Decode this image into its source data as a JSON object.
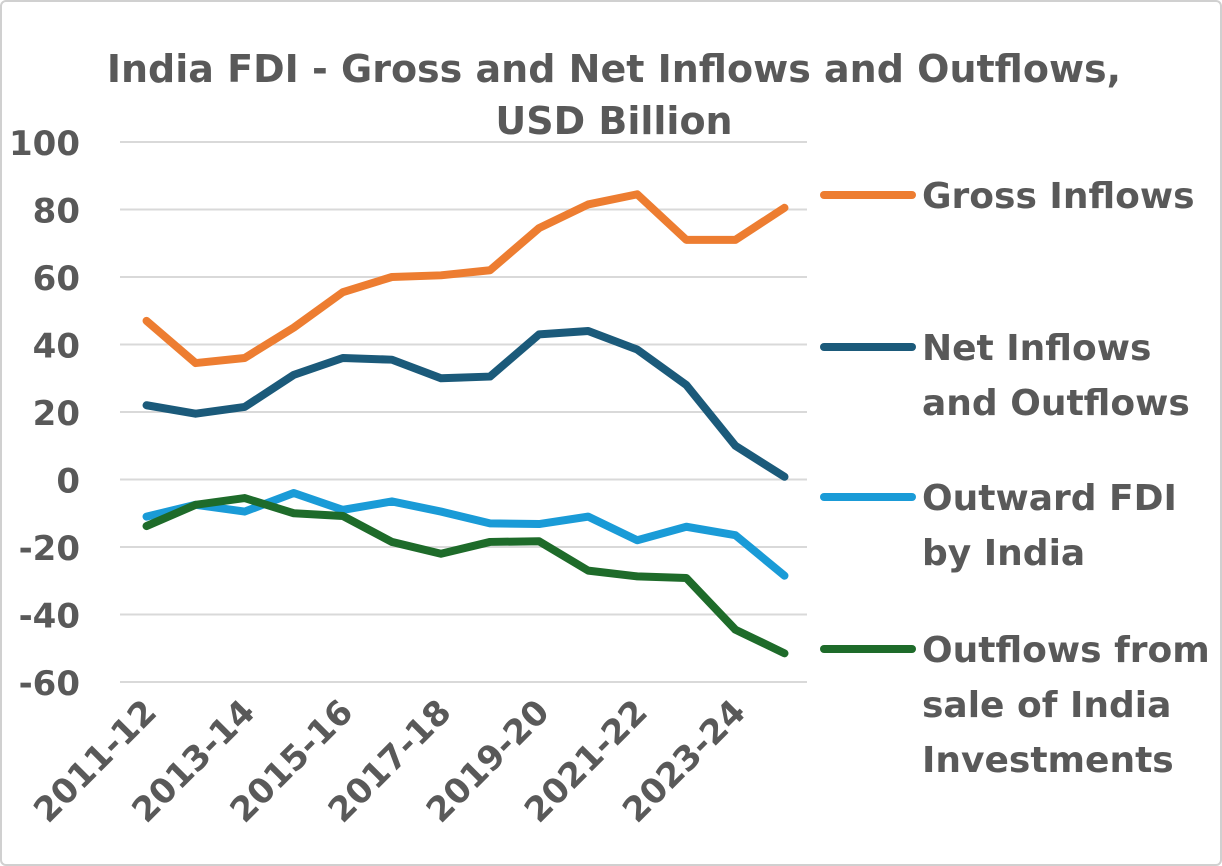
{
  "chart_data": {
    "type": "line",
    "title": "India FDI - Gross and Net Inflows and Outflows, USD Billion",
    "title_lines": [
      "India FDI - Gross and Net Inflows and Outflows,",
      "USD Billion"
    ],
    "xlabel": "",
    "ylabel": "",
    "ylim": [
      -60,
      100
    ],
    "yticks": [
      100,
      80,
      60,
      40,
      20,
      0,
      -20,
      -40,
      -60
    ],
    "ytick_labels": [
      "100",
      "80",
      "60",
      "40",
      "20",
      "0",
      "-20",
      "-40",
      "-60"
    ],
    "grid": true,
    "legend_placement": "right",
    "categories": [
      "2011-12",
      "2012-13",
      "2013-14",
      "2014-15",
      "2015-16",
      "2016-17",
      "2017-18",
      "2018-19",
      "2019-20",
      "2020-21",
      "2021-22",
      "2022-23",
      "2023-24",
      "2024-25"
    ],
    "xtick_labels": [
      "2011-12",
      "2013-14",
      "2015-16",
      "2017-18",
      "2019-20",
      "2021-22",
      "2023-24"
    ],
    "series": [
      {
        "name": "Gross Inflows",
        "legend_lines": [
          "Gross Inflows"
        ],
        "color": "#ED7D31",
        "values": [
          47,
          34.5,
          36,
          45,
          55.5,
          60,
          60.5,
          62,
          74.5,
          81.5,
          84.5,
          71,
          71,
          80.5
        ]
      },
      {
        "name": "Net Inflows and Outflows",
        "legend_lines": [
          "Net Inflows",
          "and Outflows"
        ],
        "color": "#1B5A7A",
        "values": [
          22,
          19.5,
          21.5,
          31,
          36,
          35.5,
          30,
          30.5,
          43,
          44,
          38.5,
          28,
          10,
          0.8
        ]
      },
      {
        "name": "Outward FDI by India",
        "legend_lines": [
          "Outward FDI",
          "by India"
        ],
        "color": "#1A9BD7",
        "values": [
          -11,
          -7.5,
          -9.5,
          -4,
          -9,
          -6.5,
          -9.5,
          -13,
          -13.2,
          -11,
          -18,
          -14,
          -16.5,
          -28.5
        ]
      },
      {
        "name": "Outflows from sale of India Investments",
        "legend_lines": [
          "Outflows from",
          "sale of India",
          "Investments"
        ],
        "color": "#1E6B2A",
        "values": [
          -13.8,
          -7.5,
          -5.5,
          -10,
          -10.8,
          -18.5,
          -22,
          -18.5,
          -18.3,
          -27,
          -28.7,
          -29.2,
          -44.5,
          -51.5
        ]
      }
    ]
  }
}
